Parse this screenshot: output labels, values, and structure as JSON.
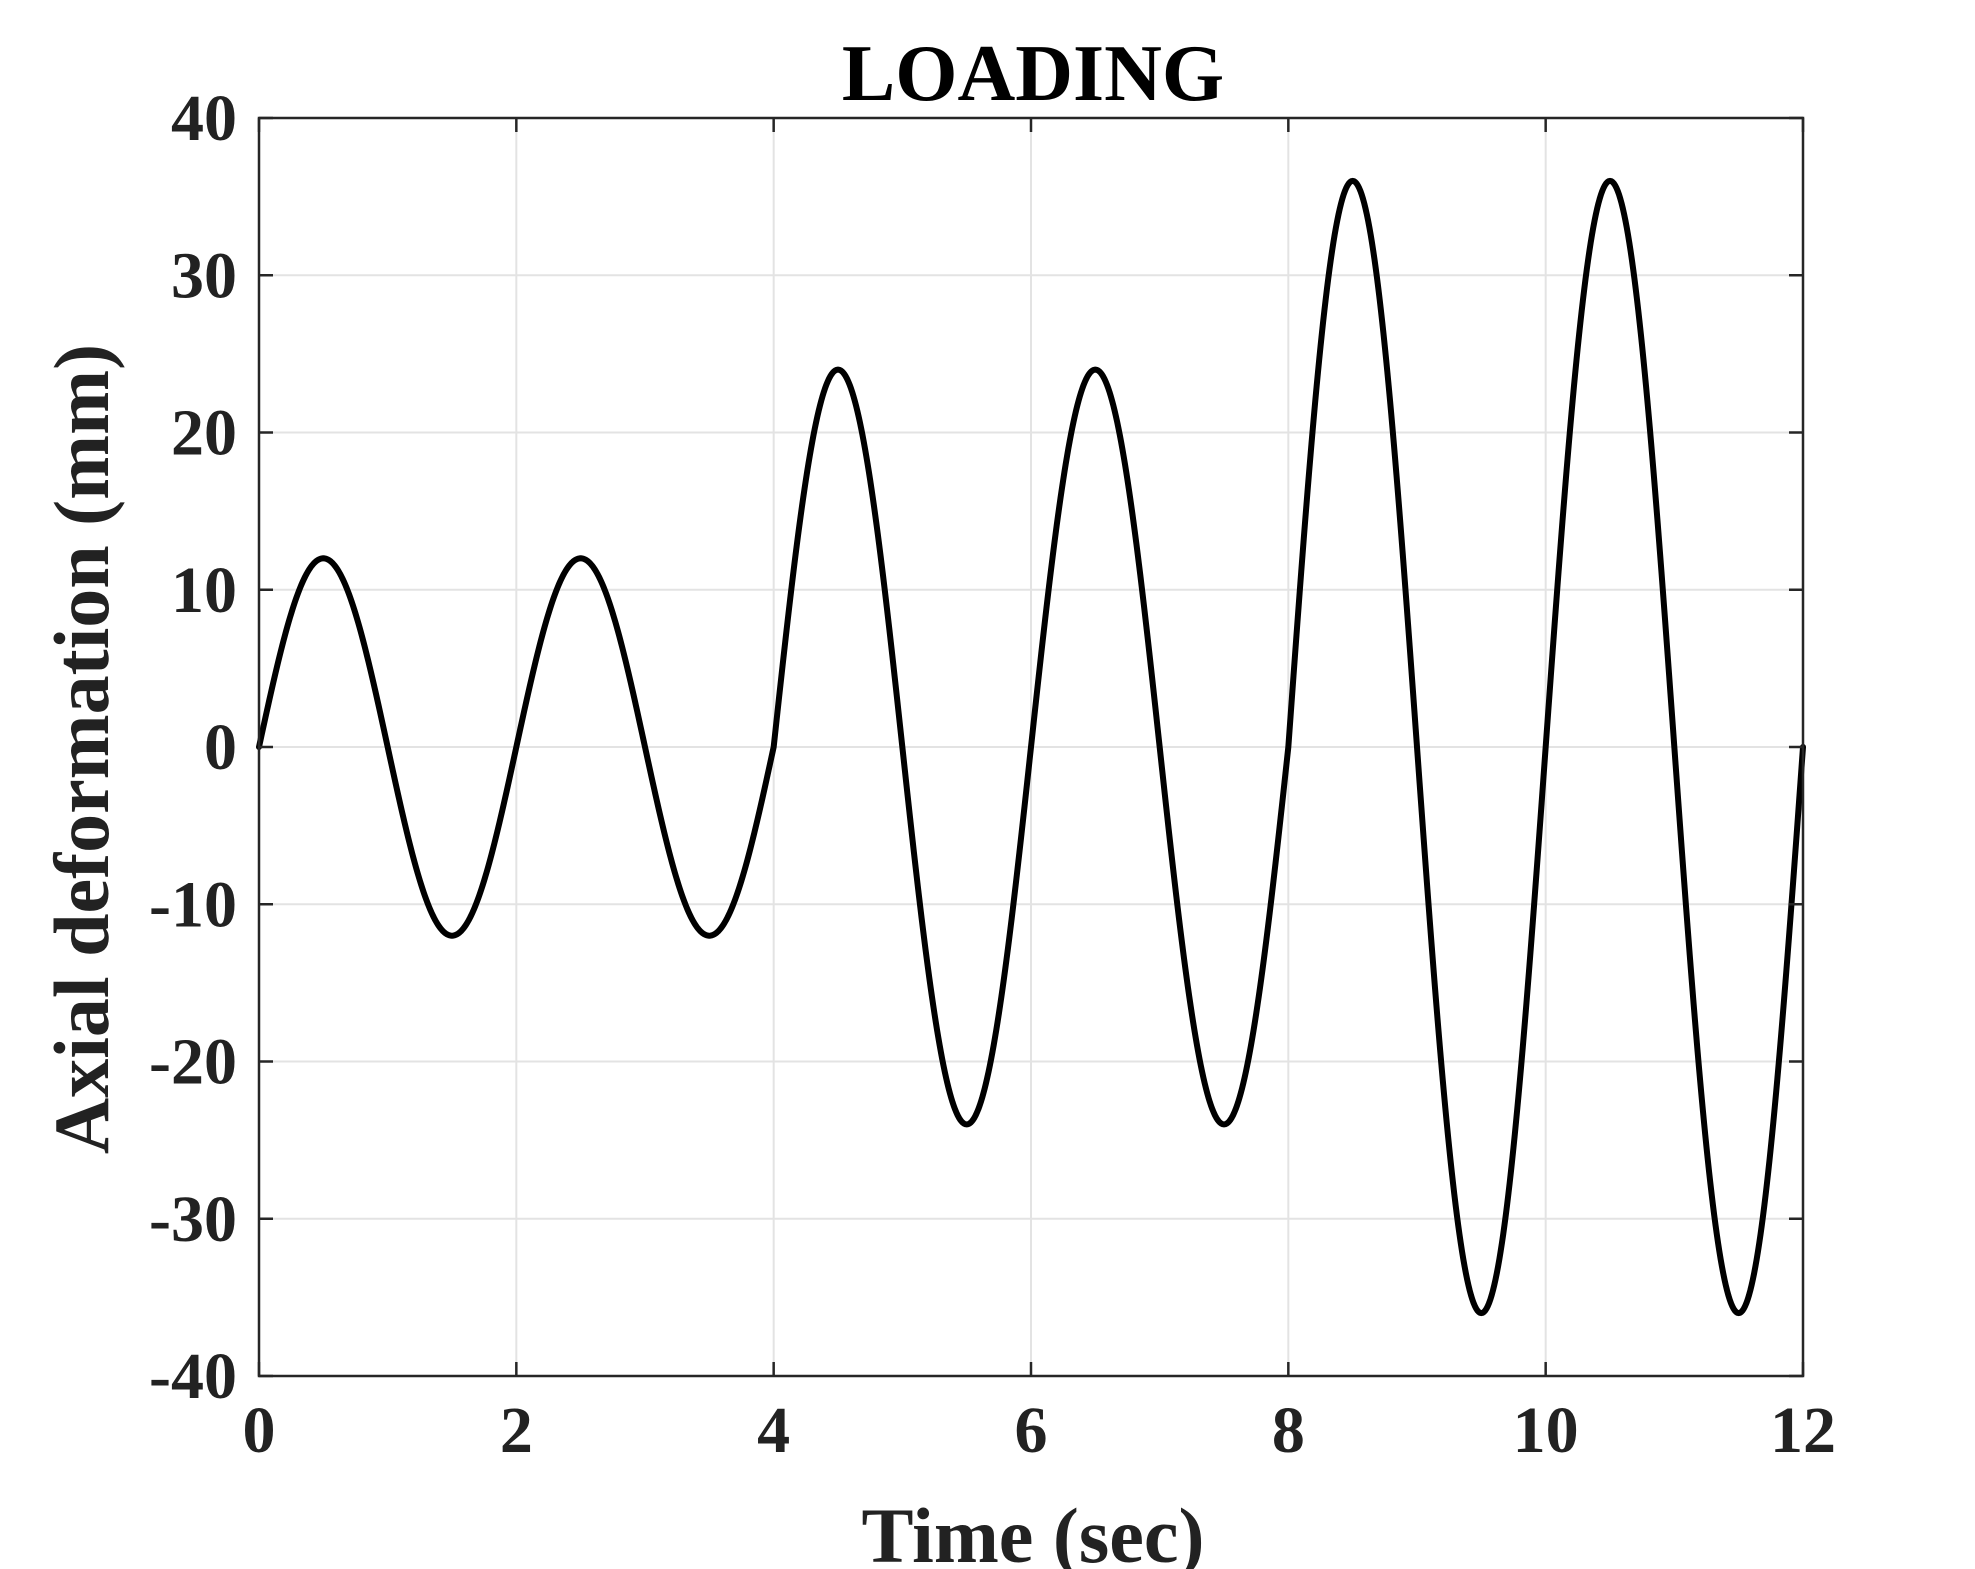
{
  "chart_data": {
    "type": "line",
    "title": "LOADING",
    "xlabel": "Time (sec)",
    "ylabel": "Axial deformation (mm)",
    "xlim": [
      0,
      12
    ],
    "ylim": [
      -40,
      40
    ],
    "xticks": [
      0,
      2,
      4,
      6,
      8,
      10,
      12
    ],
    "yticks": [
      -40,
      -30,
      -20,
      -10,
      0,
      10,
      20,
      30,
      40
    ],
    "xtick_labels": [
      "0",
      "2",
      "4",
      "6",
      "8",
      "10",
      "12"
    ],
    "ytick_labels": [
      "-40",
      "-30",
      "-20",
      "-10",
      "0",
      "10",
      "20",
      "30",
      "40"
    ],
    "grid": true,
    "line_color": "#000000",
    "series": [
      {
        "segments": [
          {
            "t_start": 0,
            "t_end": 4,
            "amplitude": 12,
            "period": 2
          },
          {
            "t_start": 4,
            "t_end": 8,
            "amplitude": 24,
            "period": 2
          },
          {
            "t_start": 8,
            "t_end": 12,
            "amplitude": 36,
            "period": 2
          }
        ]
      }
    ]
  }
}
